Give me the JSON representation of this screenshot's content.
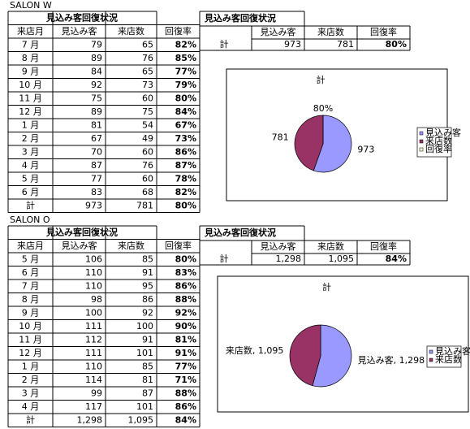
{
  "sheets": [
    {
      "name": "SALON W",
      "table": {
        "title": "見込み客回復状況",
        "header": [
          "来店月",
          "見込み客",
          "来店数",
          "回復率"
        ],
        "rows": [
          [
            "7 月",
            "79",
            "65",
            "82%"
          ],
          [
            "8 月",
            "89",
            "76",
            "85%"
          ],
          [
            "9 月",
            "84",
            "65",
            "77%"
          ],
          [
            "10 月",
            "92",
            "73",
            "79%"
          ],
          [
            "11 月",
            "75",
            "60",
            "80%"
          ],
          [
            "12 月",
            "89",
            "75",
            "84%"
          ],
          [
            "1 月",
            "81",
            "54",
            "67%"
          ],
          [
            "2 月",
            "67",
            "49",
            "73%"
          ],
          [
            "3 月",
            "70",
            "60",
            "86%"
          ],
          [
            "4 月",
            "87",
            "76",
            "87%"
          ],
          [
            "5 月",
            "77",
            "60",
            "78%"
          ],
          [
            "6 月",
            "83",
            "68",
            "82%"
          ]
        ],
        "total": [
          "計",
          "973",
          "781",
          "80%"
        ]
      },
      "summary": {
        "title": "見込み客回復状況",
        "header": [
          "見込み客",
          "来店数",
          "回復率"
        ],
        "row": [
          "計",
          "973",
          "781",
          "80%"
        ]
      }
    },
    {
      "name": "SALON O",
      "table": {
        "title": "見込み客回復状況",
        "header": [
          "来店月",
          "見込み客",
          "来店数",
          "回復率"
        ],
        "rows": [
          [
            "5 月",
            "106",
            "85",
            "80%"
          ],
          [
            "6 月",
            "110",
            "91",
            "83%"
          ],
          [
            "7 月",
            "110",
            "95",
            "86%"
          ],
          [
            "8 月",
            "98",
            "86",
            "88%"
          ],
          [
            "9 月",
            "100",
            "92",
            "92%"
          ],
          [
            "10 月",
            "111",
            "100",
            "90%"
          ],
          [
            "11 月",
            "112",
            "91",
            "81%"
          ],
          [
            "12 月",
            "111",
            "101",
            "91%"
          ],
          [
            "1 月",
            "110",
            "85",
            "77%"
          ],
          [
            "2 月",
            "114",
            "81",
            "71%"
          ],
          [
            "3 月",
            "99",
            "87",
            "88%"
          ],
          [
            "4 月",
            "117",
            "101",
            "86%"
          ]
        ],
        "total": [
          "計",
          "1,298",
          "1,095",
          "84%"
        ]
      },
      "summary": {
        "title": "見込み客回復状況",
        "header": [
          "見込み客",
          "来店数",
          "回復率"
        ],
        "row": [
          "計",
          "1,298",
          "1,095",
          "84%"
        ]
      }
    }
  ],
  "chart_data": [
    {
      "type": "pie",
      "title": "計",
      "categories": [
        "見込み客",
        "来店数",
        "回復率"
      ],
      "values": [
        973,
        781,
        0.8
      ],
      "value_labels": [
        "973",
        "781",
        "80%"
      ],
      "colors": [
        "#9999ff",
        "#993366",
        "#ffffcc"
      ]
    },
    {
      "type": "pie",
      "title": "計",
      "categories": [
        "見込み客",
        "来店数"
      ],
      "values": [
        1298,
        1095
      ],
      "value_labels": [
        "見込み客, 1,298",
        "来店数, 1,095"
      ],
      "colors": [
        "#9999ff",
        "#993366"
      ]
    }
  ]
}
